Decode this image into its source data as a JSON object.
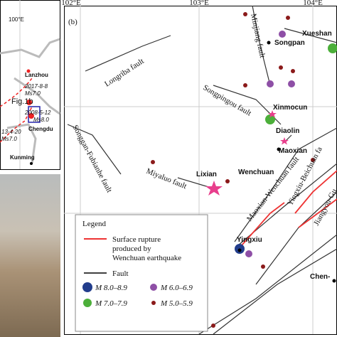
{
  "inset": {
    "lon_label": "100°E",
    "cities": [
      "Lanzhou",
      "Chengdu",
      "Kunming"
    ],
    "quakes": [
      [
        "2017-8-8",
        "Ms7.0"
      ],
      [
        "2008-5-12",
        "Ms8.0"
      ],
      [
        "13-4-20",
        "Ms7.0"
      ]
    ],
    "box_label": "Fig.1b"
  },
  "main": {
    "panel_label": "(b)",
    "lon_labels": [
      "102°E",
      "103°E",
      "104°E"
    ],
    "places": [
      "Xueshan",
      "Songpan",
      "Xinmocun",
      "Diaolin",
      "Maoxian",
      "Lixian",
      "Wenchuan",
      "Yingxiu",
      "Chen-"
    ],
    "faults": [
      "Minjiang fault",
      "Longriba fault",
      "Songpingou fault",
      "Songgan-Fubianhe fault",
      "Miyaluo fault",
      "Maoxian-Wenchuan fault",
      "Yingxiu-Beichuan fa",
      "Jiangyou-Gu"
    ]
  },
  "legend": {
    "title": "Legend",
    "rupture": [
      "Surface rupture",
      "produced by",
      "Wenchuan earthquake"
    ],
    "fault": "Fault",
    "magnitudes": [
      "M 8.0–8.9",
      "M 7.0–7.9",
      "M 6.0–6.9",
      "M 5.0–5.9"
    ]
  }
}
